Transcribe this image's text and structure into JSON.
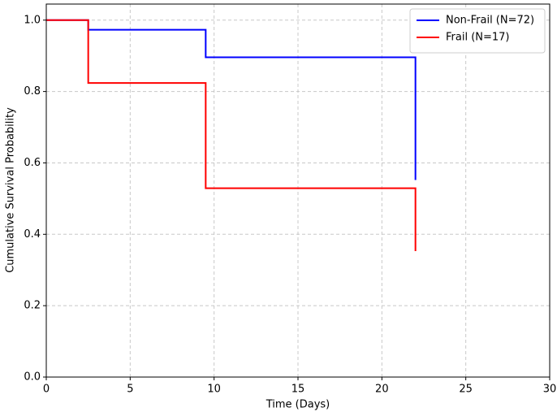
{
  "chart_data": {
    "type": "line",
    "step": "post",
    "xlabel": "Time (Days)",
    "ylabel": "Cumulative Survival Probability",
    "x": [
      0,
      2.5,
      9.5,
      22
    ],
    "series": [
      {
        "name": "Non-Frail (N=72)",
        "color": "#0000ff",
        "values": [
          1.0,
          0.973,
          0.896,
          0.552
        ]
      },
      {
        "name": "Frail (N=17)",
        "color": "#ff0000",
        "values": [
          1.0,
          0.824,
          0.529,
          0.353
        ]
      }
    ],
    "xlim": [
      0,
      30
    ],
    "xticks": [
      0,
      5,
      10,
      15,
      20,
      25,
      30
    ],
    "ylim": [
      0,
      1.045
    ],
    "yticks": [
      {
        "value": 0,
        "label": "0.0"
      },
      {
        "value": 0.2,
        "label": "0.2"
      },
      {
        "value": 0.4,
        "label": "0.4"
      },
      {
        "value": 0.6,
        "label": "0.6"
      },
      {
        "value": 0.8,
        "label": "0.8"
      },
      {
        "value": 1,
        "label": "1.0"
      }
    ],
    "grid": true,
    "legend": "upper right"
  }
}
